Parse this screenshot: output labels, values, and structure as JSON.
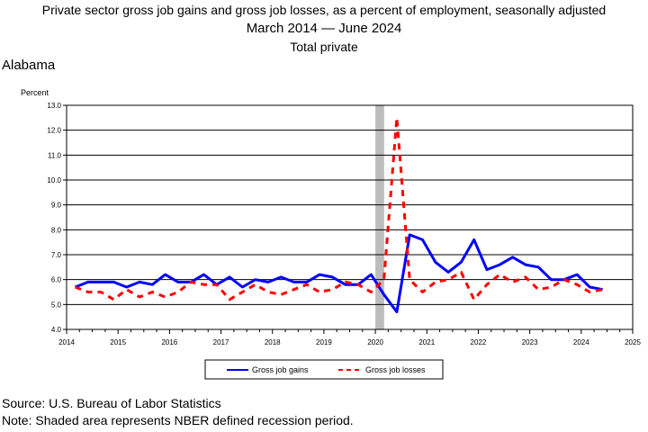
{
  "header": {
    "title_line1": "Private sector gross job gains and gross job losses, as a percent of employment, seasonally adjusted",
    "title_line2": "March 2014 — June 2024",
    "title_line3": "Total private",
    "region": "Alabama"
  },
  "footer": {
    "source": "Source: U.S. Bureau of Labor Statistics",
    "note": "Note: Shaded area represents NBER defined recession period."
  },
  "colors": {
    "gains": "#0000ff",
    "losses": "#ff0000",
    "recession": "#bdbdbd"
  },
  "chart_data": {
    "type": "line",
    "ylabel": "Percent",
    "ylim": [
      4.0,
      13.0
    ],
    "xlim": [
      2014,
      2025
    ],
    "y_ticks": [
      "4.0",
      "5.0",
      "6.0",
      "7.0",
      "8.0",
      "9.0",
      "10.0",
      "11.0",
      "12.0",
      "13.0"
    ],
    "x_ticks": [
      "2014",
      "2015",
      "2016",
      "2017",
      "2018",
      "2019",
      "2020",
      "2021",
      "2022",
      "2023",
      "2024",
      "2025"
    ],
    "grid": "horizontal",
    "recession_period": [
      2020.0,
      2020.17
    ],
    "x": [
      "2014-03",
      "2014-06",
      "2014-09",
      "2014-12",
      "2015-03",
      "2015-06",
      "2015-09",
      "2015-12",
      "2016-03",
      "2016-06",
      "2016-09",
      "2016-12",
      "2017-03",
      "2017-06",
      "2017-09",
      "2017-12",
      "2018-03",
      "2018-06",
      "2018-09",
      "2018-12",
      "2019-03",
      "2019-06",
      "2019-09",
      "2019-12",
      "2020-03",
      "2020-06",
      "2020-09",
      "2020-12",
      "2021-03",
      "2021-06",
      "2021-09",
      "2021-12",
      "2022-03",
      "2022-06",
      "2022-09",
      "2022-12",
      "2023-03",
      "2023-06",
      "2023-09",
      "2023-12",
      "2024-03",
      "2024-06"
    ],
    "series": [
      {
        "name": "Gross job gains",
        "style": "solid",
        "values": [
          5.7,
          5.9,
          5.9,
          5.9,
          5.7,
          5.9,
          5.8,
          6.2,
          5.9,
          5.9,
          6.2,
          5.8,
          6.1,
          5.7,
          6.0,
          5.9,
          6.1,
          5.9,
          5.9,
          6.2,
          6.1,
          5.8,
          5.8,
          6.2,
          5.4,
          4.7,
          7.8,
          7.6,
          6.7,
          6.3,
          6.7,
          7.6,
          6.4,
          6.6,
          6.9,
          6.6,
          6.5,
          6.0,
          6.0,
          6.2,
          5.7,
          5.6
        ]
      },
      {
        "name": "Gross job losses",
        "style": "dashed",
        "values": [
          5.7,
          5.5,
          5.5,
          5.2,
          5.6,
          5.3,
          5.5,
          5.3,
          5.5,
          5.9,
          5.8,
          5.8,
          5.2,
          5.5,
          5.8,
          5.5,
          5.4,
          5.6,
          5.8,
          5.5,
          5.6,
          5.9,
          5.8,
          5.5,
          6.0,
          12.5,
          6.0,
          5.5,
          5.9,
          6.0,
          6.3,
          5.2,
          5.8,
          6.2,
          5.9,
          6.1,
          5.6,
          5.7,
          6.0,
          5.8,
          5.5,
          5.6
        ]
      }
    ]
  }
}
